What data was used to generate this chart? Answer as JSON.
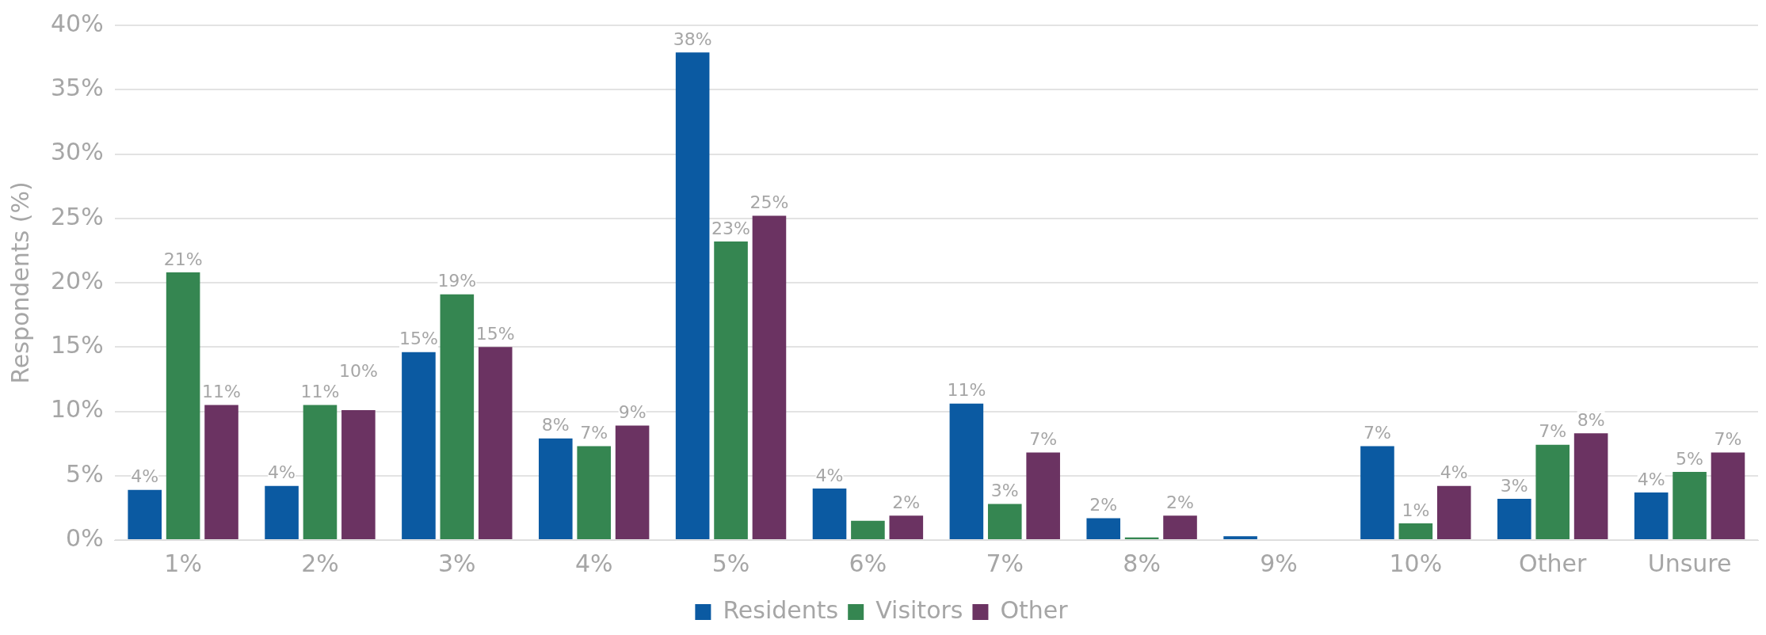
{
  "chart_data": {
    "type": "bar",
    "ylabel": "Respondents (%)",
    "categories": [
      "1%",
      "2%",
      "3%",
      "4%",
      "5%",
      "6%",
      "7%",
      "8%",
      "9%",
      "10%",
      "Other",
      "Unsure"
    ],
    "series": [
      {
        "name": "Residents",
        "color": "#0b5aa2",
        "values": [
          3.9,
          4.2,
          14.6,
          7.9,
          37.9,
          4.0,
          10.6,
          1.7,
          0.3,
          7.3,
          3.2,
          3.7
        ],
        "value_labels": [
          "4%",
          "4%",
          "15%",
          "8%",
          "38%",
          "4%",
          "11%",
          "2%",
          null,
          "7%",
          "3%",
          "4%"
        ]
      },
      {
        "name": "Visitors",
        "color": "#358651",
        "values": [
          20.8,
          10.5,
          19.1,
          7.3,
          23.2,
          1.5,
          2.8,
          0.2,
          0,
          1.3,
          7.4,
          5.3
        ],
        "value_labels": [
          "21%",
          "11%",
          "19%",
          "7%",
          "23%",
          null,
          "3%",
          null,
          null,
          "1%",
          "7%",
          "5%"
        ]
      },
      {
        "name": "Other",
        "color": "#6b3362",
        "values": [
          10.5,
          10.1,
          15.0,
          8.9,
          25.2,
          1.9,
          6.8,
          1.9,
          0,
          4.2,
          8.3,
          6.8
        ],
        "value_labels": [
          "11%",
          "10%",
          "15%",
          "9%",
          "25%",
          "2%",
          "7%",
          "2%",
          null,
          "4%",
          "8%",
          "7%"
        ]
      }
    ],
    "ylim": [
      0,
      40
    ],
    "yticks": [
      {
        "value": 0,
        "label": "0%"
      },
      {
        "value": 5,
        "label": "5%"
      },
      {
        "value": 10,
        "label": "10%"
      },
      {
        "value": 15,
        "label": "15%"
      },
      {
        "value": 20,
        "label": "20%"
      },
      {
        "value": 25,
        "label": "25%"
      },
      {
        "value": 30,
        "label": "30%"
      },
      {
        "value": 35,
        "label": "35%"
      },
      {
        "value": 40,
        "label": "40%"
      }
    ],
    "grid": "y",
    "legend": "bottom"
  }
}
